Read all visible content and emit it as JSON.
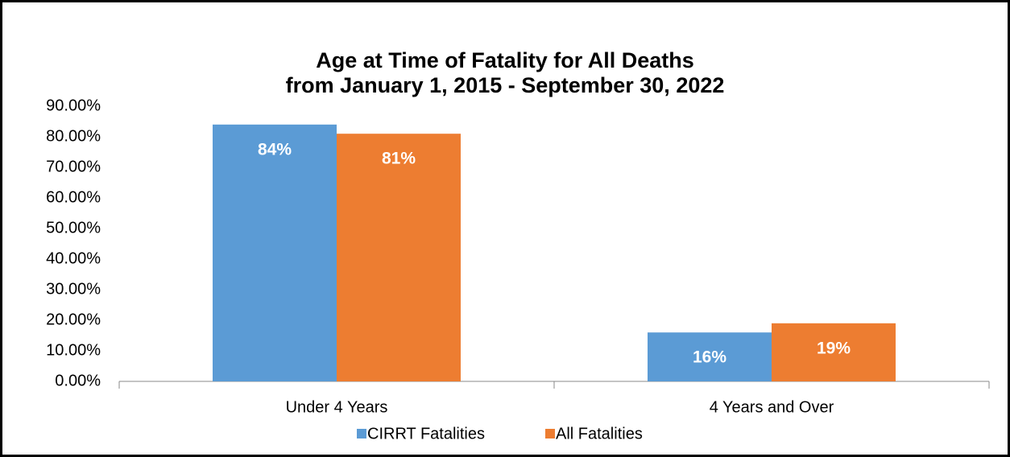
{
  "chart_data": {
    "type": "bar",
    "title": [
      "Age at Time of Fatality for All Deaths",
      "from January 1, 2015 - September 30, 2022"
    ],
    "categories": [
      "Under 4 Years",
      "4 Years and Over"
    ],
    "series": [
      {
        "name": "CIRRT Fatalities",
        "color": "#5b9bd5",
        "values": [
          84,
          16
        ],
        "value_labels": [
          "84%",
          "16%"
        ]
      },
      {
        "name": "All Fatalities",
        "color": "#ed7d31",
        "values": [
          81,
          19
        ],
        "value_labels": [
          "81%",
          "19%"
        ]
      }
    ],
    "ylim": [
      0,
      90
    ],
    "yticks": [
      {
        "value": 0,
        "label": "0.00%"
      },
      {
        "value": 10,
        "label": "10.00%"
      },
      {
        "value": 20,
        "label": "20.00%"
      },
      {
        "value": 30,
        "label": "30.00%"
      },
      {
        "value": 40,
        "label": "40.00%"
      },
      {
        "value": 50,
        "label": "50.00%"
      },
      {
        "value": 60,
        "label": "60.00%"
      },
      {
        "value": 70,
        "label": "70.00%"
      },
      {
        "value": 80,
        "label": "80.00%"
      },
      {
        "value": 90,
        "label": "90.00%"
      }
    ],
    "grid": false,
    "legend": "bottom"
  }
}
